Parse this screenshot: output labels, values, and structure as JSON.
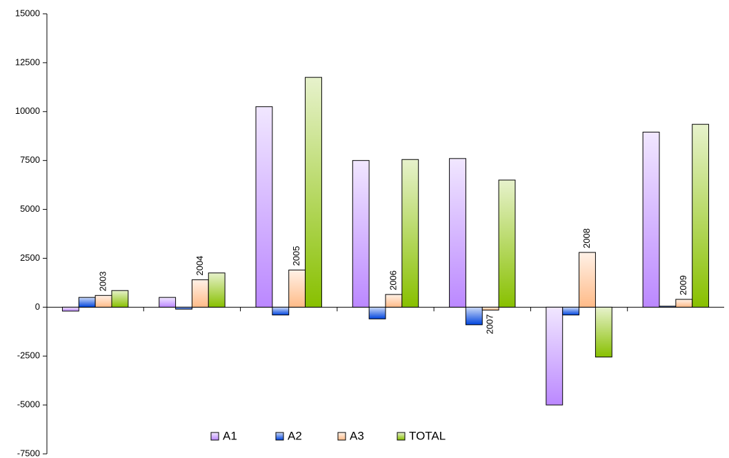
{
  "chart_data": {
    "type": "bar",
    "categories": [
      "2003",
      "2004",
      "2005",
      "2006",
      "2007",
      "2008",
      "2009"
    ],
    "series": [
      {
        "name": "A1",
        "color": "#bb88ff",
        "values": [
          -200,
          500,
          10250,
          7500,
          7600,
          -5000,
          8950
        ]
      },
      {
        "name": "A2",
        "color": "#0044dd",
        "values": [
          500,
          -100,
          -400,
          -600,
          -900,
          -400,
          50
        ]
      },
      {
        "name": "A3",
        "color": "#ffbb88",
        "values": [
          600,
          1400,
          1900,
          650,
          -150,
          2800,
          400
        ]
      },
      {
        "name": "TOTAL",
        "color": "#88c000",
        "values": [
          850,
          1750,
          11750,
          7550,
          6500,
          -2550,
          9350
        ]
      }
    ],
    "ylim": [
      -7500,
      15000
    ],
    "yticks": [
      -7500,
      -5000,
      -2500,
      0,
      2500,
      5000,
      7500,
      10000,
      12500,
      15000
    ],
    "grid": false,
    "legend": "bottom"
  }
}
